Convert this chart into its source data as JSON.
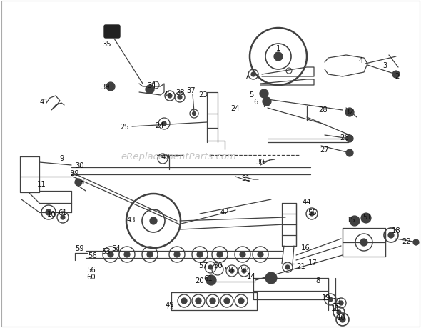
{
  "bg_color": "#ffffff",
  "diagram_color": "#404040",
  "watermark": "eReplacementParts.com",
  "watermark_color": "#bbbbbb",
  "figsize": [
    5.9,
    4.6
  ],
  "dpi": 100
}
